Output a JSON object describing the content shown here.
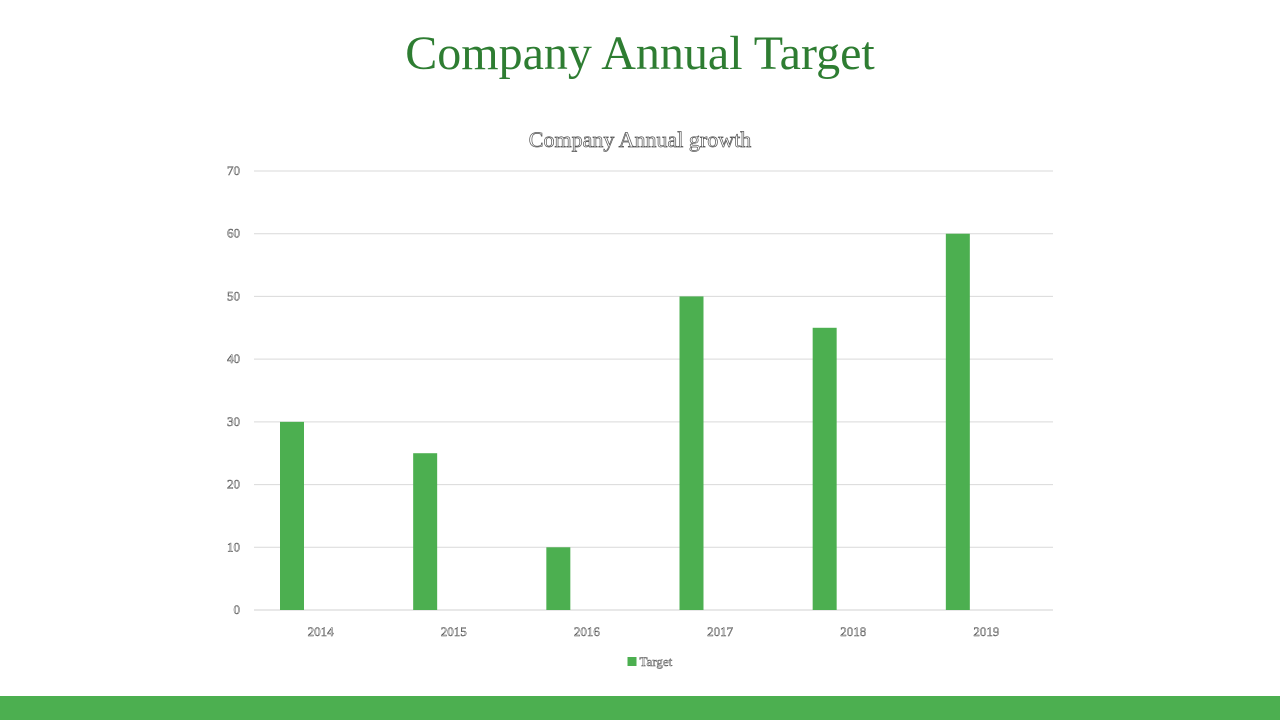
{
  "slide": {
    "title": "Company  Annual Target"
  },
  "colors": {
    "title": "#2e7d32",
    "bar": "#4caf50",
    "footer": "#4caf50"
  },
  "chart_data": {
    "type": "bar",
    "title": "Company Annual growth",
    "categories": [
      "2014",
      "2015",
      "2016",
      "2017",
      "2018",
      "2019"
    ],
    "series": [
      {
        "name": "Target",
        "values": [
          30,
          25,
          10,
          50,
          45,
          60
        ]
      }
    ],
    "ylim": [
      0,
      70
    ],
    "yticks": [
      0,
      10,
      20,
      30,
      40,
      50,
      60,
      70
    ],
    "grid": true,
    "legend_position": "bottom"
  }
}
